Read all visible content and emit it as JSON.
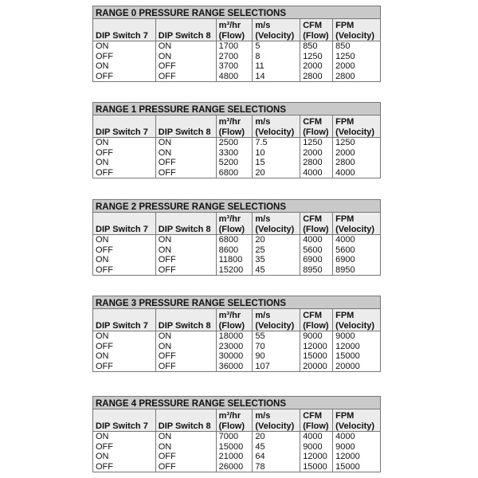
{
  "headers": {
    "dip7": "DIP Switch 7",
    "dip8": "DIP Switch 8",
    "m3hr_unit": "m³/hr",
    "flow": "(Flow)",
    "ms_unit": "m/s",
    "velocity": "(Velocity)",
    "cfm_unit": "CFM",
    "fpm_unit": "FPM"
  },
  "tables": [
    {
      "title": "RANGE 0 PRESSURE RANGE SELECTIONS",
      "rows": [
        [
          "ON",
          "ON",
          "1700",
          "5",
          "850",
          "850"
        ],
        [
          "OFF",
          "ON",
          "2700",
          "8",
          "1250",
          "1250"
        ],
        [
          "ON",
          "OFF",
          "3700",
          "11",
          "2000",
          "2000"
        ],
        [
          "OFF",
          "OFF",
          "4800",
          "14",
          "2800",
          "2800"
        ]
      ]
    },
    {
      "title": "RANGE 1 PRESSURE RANGE SELECTIONS",
      "rows": [
        [
          "ON",
          "ON",
          "2500",
          "7.5",
          "1250",
          "1250"
        ],
        [
          "OFF",
          "ON",
          "3300",
          "10",
          "2000",
          "2000"
        ],
        [
          "ON",
          "OFF",
          "5200",
          "15",
          "2800",
          "2800"
        ],
        [
          "OFF",
          "OFF",
          "6800",
          "20",
          "4000",
          "4000"
        ]
      ]
    },
    {
      "title": "RANGE 2 PRESSURE RANGE SELECTIONS",
      "rows": [
        [
          "ON",
          "ON",
          "6800",
          "20",
          "4000",
          "4000"
        ],
        [
          "OFF",
          "ON",
          "8600",
          "25",
          "5600",
          "5600"
        ],
        [
          "ON",
          "OFF",
          "11800",
          "35",
          "6900",
          "6900"
        ],
        [
          "OFF",
          "OFF",
          "15200",
          "45",
          "8950",
          "8950"
        ]
      ]
    },
    {
      "title": "RANGE 3 PRESSURE RANGE SELECTIONS",
      "rows": [
        [
          "ON",
          "ON",
          "18000",
          "55",
          "9000",
          "9000"
        ],
        [
          "OFF",
          "ON",
          "23000",
          "70",
          "12000",
          "12000"
        ],
        [
          "ON",
          "OFF",
          "30000",
          "90",
          "15000",
          "15000"
        ],
        [
          "OFF",
          "OFF",
          "36000",
          "107",
          "20000",
          "20000"
        ]
      ]
    },
    {
      "title": "RANGE 4 PRESSURE RANGE SELECTIONS",
      "rows": [
        [
          "ON",
          "ON",
          "7000",
          "20",
          "4000",
          "4000"
        ],
        [
          "OFF",
          "ON",
          "15000",
          "45",
          "9000",
          "9000"
        ],
        [
          "ON",
          "OFF",
          "21000",
          "64",
          "12000",
          "12000"
        ],
        [
          "OFF",
          "OFF",
          "26000",
          "78",
          "15000",
          "15000"
        ]
      ]
    }
  ]
}
